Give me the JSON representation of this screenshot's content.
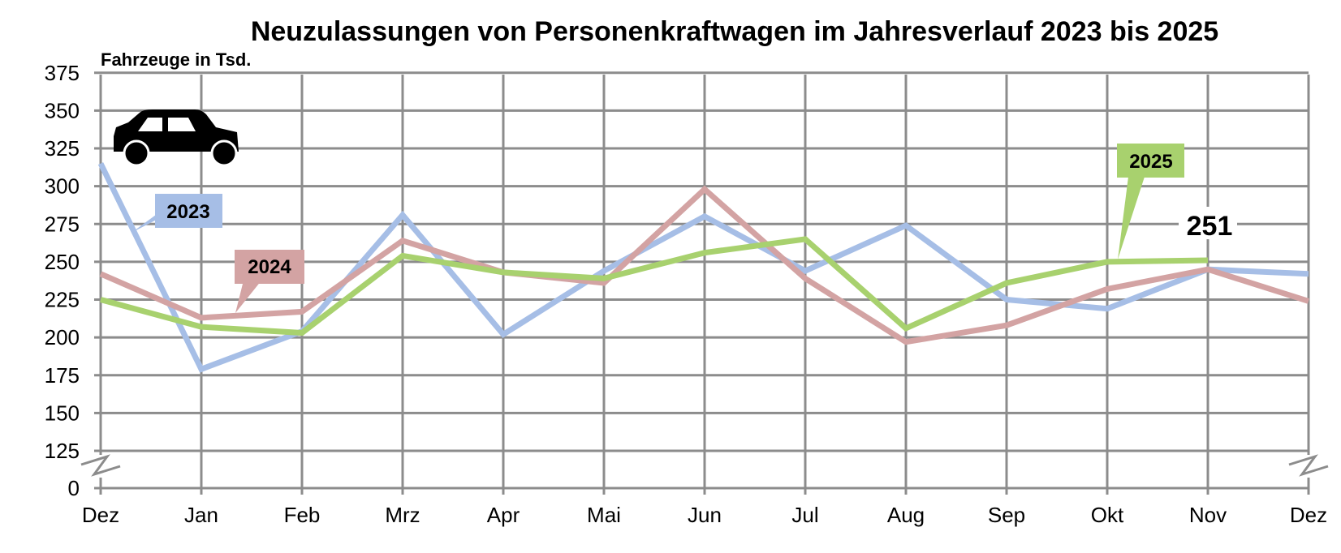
{
  "chart_data": {
    "type": "line",
    "title": "Neuzulassungen von Personenkraftwagen im Jahresverlauf 2023 bis 2025",
    "ylabel": "Fahrzeuge in Tsd.",
    "xlabel": "",
    "categories": [
      "Dez",
      "Jan",
      "Feb",
      "Mrz",
      "Apr",
      "Mai",
      "Jun",
      "Jul",
      "Aug",
      "Sep",
      "Okt",
      "Nov",
      "Dez"
    ],
    "y_ticks": [
      "0",
      "125",
      "150",
      "175",
      "200",
      "225",
      "250",
      "275",
      "300",
      "325",
      "350",
      "375"
    ],
    "ylim": [
      0,
      375
    ],
    "axis_break": "between 0 and 125",
    "grid": true,
    "series": [
      {
        "name": "2023",
        "color": "#a6bee6",
        "values": [
          315,
          179,
          204,
          281,
          202,
          244,
          280,
          244,
          274,
          225,
          219,
          245,
          242
        ]
      },
      {
        "name": "2024",
        "color": "#d3a3a3",
        "values": [
          242,
          213,
          217,
          264,
          243,
          236,
          298,
          239,
          197,
          208,
          232,
          245,
          224
        ]
      },
      {
        "name": "2025",
        "color": "#a8d16e",
        "values": [
          225,
          207,
          203,
          254,
          243,
          239,
          256,
          265,
          206,
          236,
          250,
          251,
          null
        ]
      }
    ],
    "annotations": [
      {
        "text": "251",
        "series": "2025",
        "category_index": 11
      }
    ],
    "icon": "car-icon"
  }
}
